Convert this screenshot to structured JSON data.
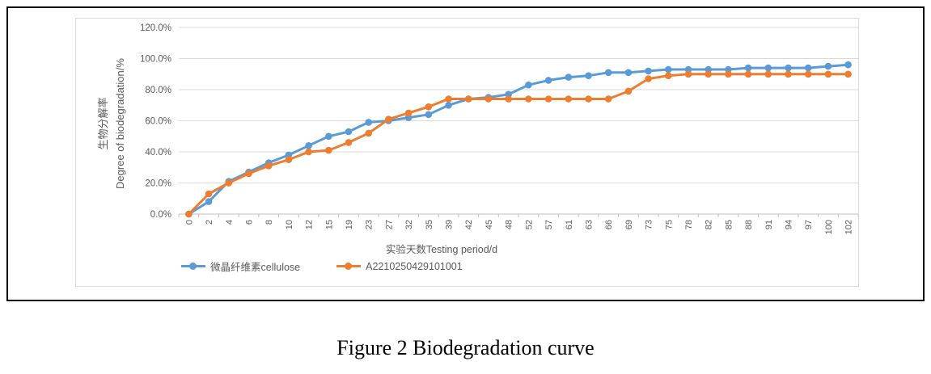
{
  "figure": {
    "caption": "Figure 2 Biodegradation curve"
  },
  "chart_data": {
    "type": "line",
    "title": "",
    "xlabel": "实验天数Testing period/d",
    "ylabel": [
      "生物分解率",
      "Degree of biodegradation/%"
    ],
    "ylim": [
      0,
      120
    ],
    "grid": true,
    "legend_position": "bottom",
    "y_ticks": [
      {
        "value": 120,
        "label": "120.0%"
      },
      {
        "value": 100,
        "label": "100.0%"
      },
      {
        "value": 80,
        "label": "80.0%"
      },
      {
        "value": 60,
        "label": "60.0%"
      },
      {
        "value": 40,
        "label": "40.0%"
      },
      {
        "value": 20,
        "label": "20.0%"
      },
      {
        "value": 0,
        "label": "0.0%"
      }
    ],
    "categories": [
      0,
      2,
      4,
      6,
      8,
      10,
      12,
      15,
      19,
      23,
      27,
      32,
      35,
      39,
      42,
      45,
      48,
      52,
      57,
      61,
      63,
      66,
      69,
      73,
      75,
      78,
      82,
      85,
      88,
      91,
      94,
      97,
      100,
      102
    ],
    "series": [
      {
        "name": "微晶纤维素cellulose",
        "color": "#5B9BD5",
        "values": [
          0,
          8,
          21,
          27,
          33,
          38,
          44,
          50,
          53,
          59,
          60,
          62,
          64,
          70,
          74,
          75,
          77,
          83,
          86,
          88,
          89,
          91,
          91,
          92,
          93,
          93,
          93,
          93,
          94,
          94,
          94,
          94,
          95,
          96
        ]
      },
      {
        "name": "A2210250429101001",
        "color": "#ED7D31",
        "values": [
          0,
          13,
          20,
          26,
          31,
          35,
          40,
          41,
          46,
          52,
          61,
          65,
          69,
          74,
          74,
          74,
          74,
          74,
          74,
          74,
          74,
          74,
          79,
          87,
          89,
          90,
          90,
          90,
          90,
          90,
          90,
          90,
          90,
          90
        ]
      }
    ],
    "colors": {
      "gridline": "#D9D9D9",
      "axis": "#BFBFBF",
      "tick_label": "#595959"
    }
  }
}
